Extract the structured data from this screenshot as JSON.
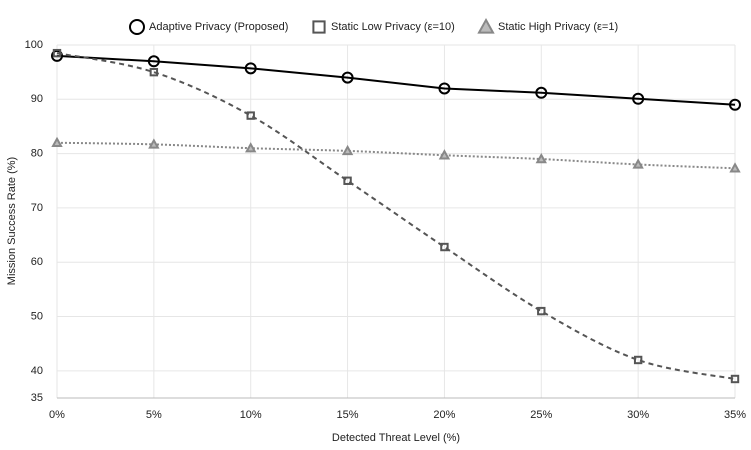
{
  "chart_data": {
    "type": "line",
    "x_label": "Detected Threat Level (%)",
    "y_label": "Mission Success Rate (%)",
    "x": [
      0,
      5,
      10,
      15,
      20,
      25,
      30,
      35
    ],
    "xlim": [
      0,
      35
    ],
    "xticks": [
      {
        "value": 0,
        "label": "0%"
      },
      {
        "value": 5,
        "label": "5%"
      },
      {
        "value": 10,
        "label": "10%"
      },
      {
        "value": 15,
        "label": "15%"
      },
      {
        "value": 20,
        "label": "20%"
      },
      {
        "value": 25,
        "label": "25%"
      },
      {
        "value": 30,
        "label": "30%"
      },
      {
        "value": 35,
        "label": "35%"
      }
    ],
    "ylim": [
      35,
      100
    ],
    "yticks": [
      35,
      40,
      50,
      60,
      70,
      80,
      90,
      100
    ],
    "grid": true,
    "legend": "top",
    "series": [
      {
        "name": "Adaptive Privacy (Proposed)",
        "color": "#000000",
        "marker": "circle",
        "dash": "solid",
        "values": [
          98,
          97,
          95.7,
          94,
          92,
          91.2,
          90.1,
          89
        ]
      },
      {
        "name": "Static Low Privacy (ε=10)",
        "color": "#555555",
        "marker": "square",
        "dash": "dashed",
        "values": [
          98.5,
          95,
          87,
          75,
          62.8,
          51,
          42,
          38.5
        ]
      },
      {
        "name": "Static High Privacy (ε=1)",
        "color": "#888888",
        "marker": "triangle",
        "dash": "dotted",
        "values": [
          82,
          81.7,
          81,
          80.5,
          79.7,
          79,
          78,
          77.3
        ]
      }
    ]
  }
}
